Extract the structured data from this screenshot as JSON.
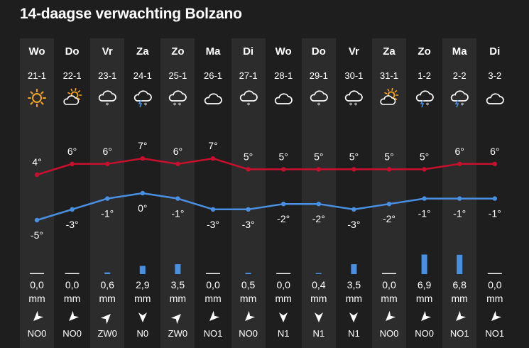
{
  "title": "14-daagse verwachting Bolzano",
  "days": [
    {
      "day": "Wo",
      "date": "21-1",
      "icon": "sun-icon",
      "max": 4,
      "min": -5,
      "precip": "0,0",
      "wind": "NO0",
      "wind_dir": "NE"
    },
    {
      "day": "Do",
      "date": "22-1",
      "icon": "partly-cloudy-icon",
      "max": 6,
      "min": -3,
      "precip": "0,0",
      "wind": "NO0",
      "wind_dir": "NE"
    },
    {
      "day": "Vr",
      "date": "23-1",
      "icon": "cloud-snow-icon",
      "max": 6,
      "min": -1,
      "precip": "0,6",
      "wind": "ZW0",
      "wind_dir": "SW"
    },
    {
      "day": "Za",
      "date": "24-1",
      "icon": "cloud-thunder-snow-icon",
      "max": 7,
      "min": 0,
      "precip": "2,9",
      "wind": "N0",
      "wind_dir": "N"
    },
    {
      "day": "Zo",
      "date": "25-1",
      "icon": "cloud-heavy-snow-icon",
      "max": 6,
      "min": -1,
      "precip": "3,5",
      "wind": "ZW0",
      "wind_dir": "SW"
    },
    {
      "day": "Ma",
      "date": "26-1",
      "icon": "cloud-icon",
      "max": 7,
      "min": -3,
      "precip": "0,0",
      "wind": "NO1",
      "wind_dir": "NE"
    },
    {
      "day": "Di",
      "date": "27-1",
      "icon": "cloud-snow-icon",
      "max": 5,
      "min": -3,
      "precip": "0,5",
      "wind": "NO0",
      "wind_dir": "NE"
    },
    {
      "day": "Wo",
      "date": "28-1",
      "icon": "cloud-icon",
      "max": 5,
      "min": -2,
      "precip": "0,0",
      "wind": "N1",
      "wind_dir": "N"
    },
    {
      "day": "Do",
      "date": "29-1",
      "icon": "cloud-snow-icon",
      "max": 5,
      "min": -2,
      "precip": "0,4",
      "wind": "N1",
      "wind_dir": "N"
    },
    {
      "day": "Vr",
      "date": "30-1",
      "icon": "cloud-heavy-snow-icon",
      "max": 5,
      "min": -3,
      "precip": "3,5",
      "wind": "N1",
      "wind_dir": "N"
    },
    {
      "day": "Za",
      "date": "31-1",
      "icon": "partly-cloudy-icon",
      "max": 5,
      "min": -2,
      "precip": "0,0",
      "wind": "NO0",
      "wind_dir": "NE"
    },
    {
      "day": "Zo",
      "date": "1-2",
      "icon": "cloud-thunder-snow-icon",
      "max": 5,
      "min": -1,
      "precip": "6,9",
      "wind": "NO0",
      "wind_dir": "NE"
    },
    {
      "day": "Ma",
      "date": "2-2",
      "icon": "cloud-thunder-snow-icon",
      "max": 6,
      "min": -1,
      "precip": "6,8",
      "wind": "NO1",
      "wind_dir": "NE"
    },
    {
      "day": "Di",
      "date": "3-2",
      "icon": "cloud-icon",
      "max": 6,
      "min": -1,
      "precip": "0,0",
      "wind": "NO1",
      "wind_dir": "NE"
    }
  ],
  "units": {
    "precip": "mm",
    "temp_suffix": "°"
  },
  "colors": {
    "background": "#1e1e1e",
    "stripe": "#2c2c2c",
    "max_line": "#c8102e",
    "min_line": "#4a90e2",
    "precip_bar": "#4a90e2",
    "sun": "#f5a623"
  }
}
